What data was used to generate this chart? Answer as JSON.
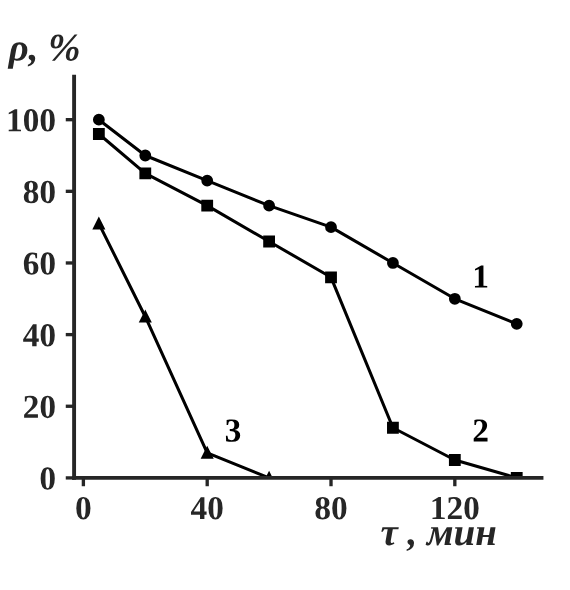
{
  "chart_data": {
    "type": "line",
    "xlabel": "τ , мин",
    "ylabel": "ρ, %",
    "x": [
      5,
      20,
      40,
      60,
      80,
      100,
      120,
      140
    ],
    "series": [
      {
        "name": "1",
        "color": "#000000",
        "marker": "circle",
        "values": [
          100,
          90,
          83,
          76,
          70,
          60,
          50,
          43
        ]
      },
      {
        "name": "2",
        "color": "#000000",
        "marker": "square",
        "values": [
          96,
          85,
          76,
          66,
          56,
          14,
          5,
          0
        ]
      },
      {
        "name": "3",
        "color": "#000000",
        "marker": "triangle",
        "x": [
          5,
          20,
          40,
          60
        ],
        "values": [
          71,
          45,
          7,
          0
        ]
      }
    ],
    "xlim": [
      -3,
      148
    ],
    "ylim": [
      0,
      112
    ],
    "xticks": [
      0,
      40,
      80,
      120
    ],
    "yticks": [
      0,
      20,
      40,
      60,
      80,
      100
    ],
    "grid": false,
    "legend": false,
    "line_style": "solid"
  }
}
